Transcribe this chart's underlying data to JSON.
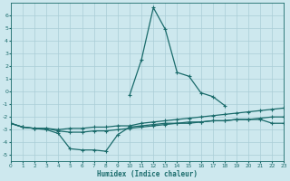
{
  "xlabel": "Humidex (Indice chaleur)",
  "xlim": [
    0,
    23
  ],
  "ylim": [
    -5.5,
    7.0
  ],
  "yticks": [
    -5,
    -4,
    -3,
    -2,
    -1,
    0,
    1,
    2,
    3,
    4,
    5,
    6
  ],
  "xticks": [
    0,
    1,
    2,
    3,
    4,
    5,
    6,
    7,
    8,
    9,
    10,
    11,
    12,
    13,
    14,
    15,
    16,
    17,
    18,
    19,
    20,
    21,
    22,
    23
  ],
  "background_color": "#cde8ee",
  "grid_color": "#aacdd6",
  "line_color": "#1a6b6b",
  "line_width": 0.9,
  "marker": "+",
  "marker_size": 3.5,
  "lines": [
    [
      null,
      null,
      null,
      null,
      null,
      null,
      null,
      null,
      null,
      null,
      -0.3,
      2.5,
      6.6,
      4.9,
      1.5,
      1.2,
      -0.1,
      -0.4,
      -1.1,
      null,
      null,
      null,
      null,
      null
    ],
    [
      -2.5,
      -2.8,
      -2.9,
      -2.9,
      -3.0,
      -2.9,
      -2.9,
      -2.8,
      -2.8,
      -2.7,
      -2.7,
      -2.5,
      -2.4,
      -2.3,
      -2.2,
      -2.1,
      -2.0,
      -1.9,
      -1.8,
      -1.7,
      -1.6,
      -1.5,
      -1.4,
      -1.3
    ],
    [
      -2.5,
      -2.8,
      -2.9,
      -2.9,
      -3.1,
      -3.2,
      -3.2,
      -3.1,
      -3.1,
      -3.0,
      -2.9,
      -2.8,
      -2.7,
      -2.6,
      -2.5,
      -2.5,
      -2.4,
      -2.3,
      -2.3,
      -2.2,
      -2.2,
      -2.1,
      -2.0,
      -2.0
    ],
    [
      -2.5,
      -2.8,
      -2.9,
      -3.0,
      -3.3,
      -4.5,
      -4.6,
      -4.6,
      -4.7,
      -3.4,
      -2.8,
      -2.7,
      -2.6,
      -2.5,
      -2.5,
      -2.4,
      -2.4,
      -2.3,
      -2.3,
      -2.2,
      -2.2,
      -2.2,
      -2.5,
      -2.5
    ]
  ]
}
